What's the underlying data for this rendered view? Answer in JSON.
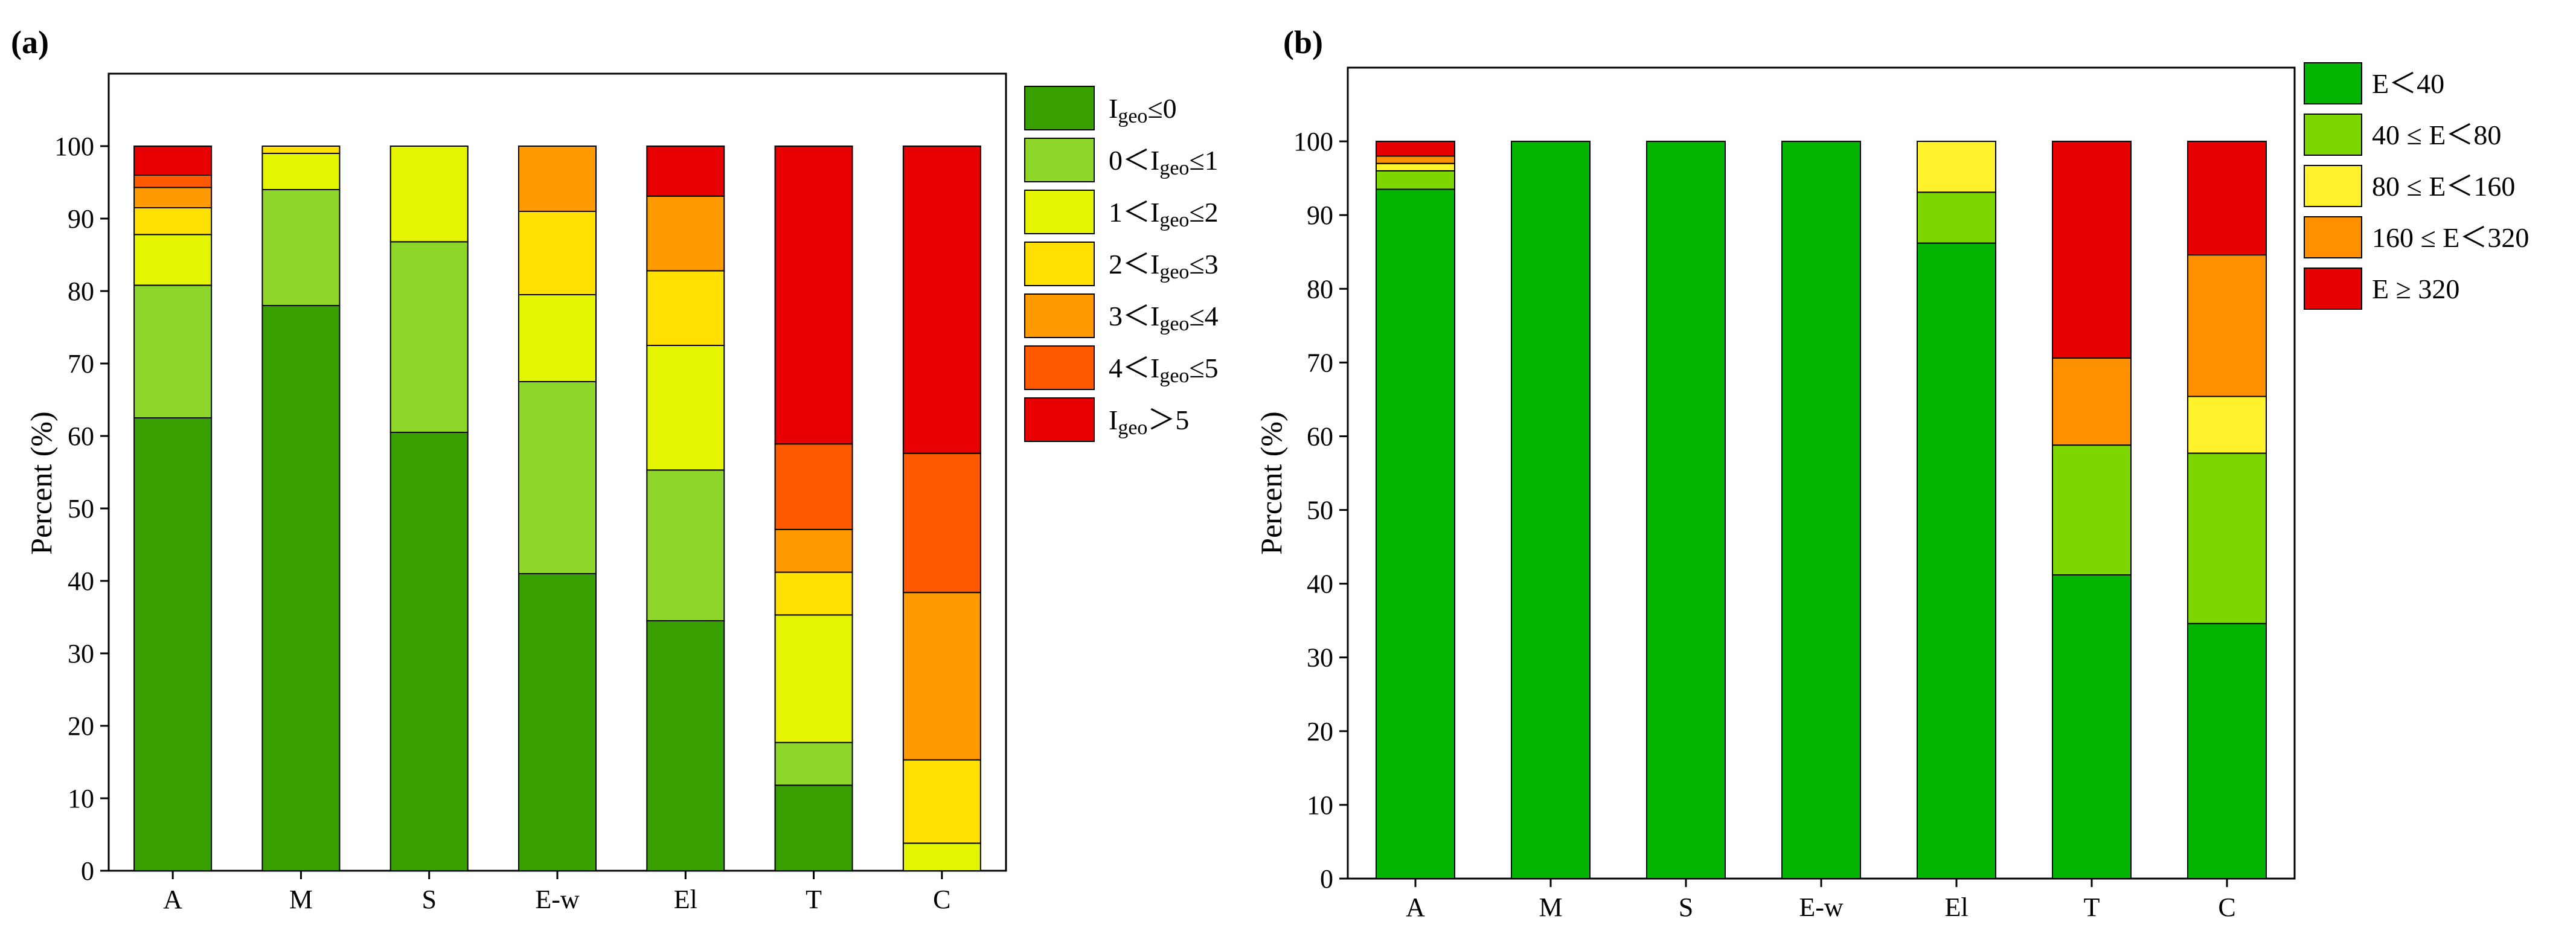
{
  "chart_data": [
    {
      "panel_label": "(a)",
      "type": "bar",
      "stacked": true,
      "title": "",
      "xlabel": "",
      "ylabel": "Percent (%)",
      "ylim": [
        0,
        110
      ],
      "yticks": [
        0,
        10,
        20,
        30,
        40,
        50,
        60,
        70,
        80,
        90,
        100
      ],
      "categories": [
        "A",
        "M",
        "S",
        "E-w",
        "El",
        "T",
        "C"
      ],
      "series": [
        {
          "name": "I",
          "sub": "geo",
          "suffix": "≤0",
          "color": "#37a000",
          "values": [
            62.5,
            78,
            60.5,
            41,
            34.5,
            11.8,
            0
          ]
        },
        {
          "name": "0＜I",
          "sub": "geo",
          "suffix": "≤1",
          "color": "#8ed629",
          "values": [
            18.3,
            16,
            26.3,
            26.5,
            20.8,
            5.9,
            0
          ]
        },
        {
          "name": "1＜I",
          "sub": "geo",
          "suffix": "≤2",
          "color": "#e5f500",
          "values": [
            7.0,
            5,
            13.2,
            12,
            17.2,
            17.6,
            3.8
          ]
        },
        {
          "name": "2＜I",
          "sub": "geo",
          "suffix": "≤3",
          "color": "#ffe000",
          "values": [
            3.7,
            1,
            0,
            11.5,
            10.3,
            5.9,
            11.5
          ]
        },
        {
          "name": "3＜I",
          "sub": "geo",
          "suffix": "≤4",
          "color": "#ff9a00",
          "values": [
            2.8,
            0,
            0,
            9,
            10.3,
            5.9,
            23.1
          ]
        },
        {
          "name": "4＜I",
          "sub": "geo",
          "suffix": "≤5",
          "color": "#ff5a00",
          "values": [
            1.7,
            0,
            0,
            0,
            0,
            11.8,
            19.2
          ]
        },
        {
          "name": "I",
          "sub": "geo",
          "suffix": "＞5",
          "color": "#e80000",
          "values": [
            4.0,
            0,
            0,
            0,
            6.9,
            41.1,
            42.4
          ]
        }
      ],
      "legend_position": "outside-right-top"
    },
    {
      "panel_label": "(b)",
      "type": "bar",
      "stacked": true,
      "title": "",
      "xlabel": "",
      "ylabel": "Percent (%)",
      "ylim": [
        0,
        110
      ],
      "yticks": [
        0,
        10,
        20,
        30,
        40,
        50,
        60,
        70,
        80,
        90,
        100
      ],
      "categories": [
        "A",
        "M",
        "S",
        "E-w",
        "El",
        "T",
        "C"
      ],
      "series": [
        {
          "name": "E＜40",
          "color": "#00b400",
          "values": [
            93.5,
            100,
            100,
            100,
            86.2,
            41.2,
            34.6
          ]
        },
        {
          "name": "40 ≤ E＜80",
          "color": "#7ed600",
          "values": [
            2.5,
            0,
            0,
            0,
            6.9,
            17.6,
            23.1
          ]
        },
        {
          "name": "80 ≤ E＜160",
          "color": "#fff22a",
          "values": [
            1.0,
            0,
            0,
            0,
            6.9,
            0,
            7.7
          ]
        },
        {
          "name": "160 ≤ E＜320",
          "color": "#ff9000",
          "values": [
            1.0,
            0,
            0,
            0,
            0,
            11.8,
            19.2
          ]
        },
        {
          "name": "E ≥ 320",
          "color": "#e60000",
          "values": [
            2.0,
            0,
            0,
            0,
            0,
            29.4,
            15.4
          ]
        }
      ],
      "legend_position": "outside-right-top"
    }
  ]
}
